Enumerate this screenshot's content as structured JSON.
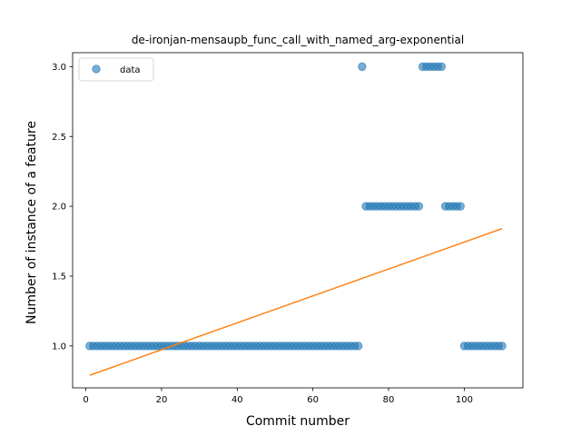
{
  "chart_data": {
    "type": "scatter",
    "title": "de-ironjan-mensaupb_func_call_with_named_arg-exponential",
    "xlabel": "Commit number",
    "ylabel": "Number of instance of a feature",
    "xlim": [
      -3.5,
      115.5
    ],
    "ylim": [
      0.7,
      3.1
    ],
    "x_ticks": [
      0,
      20,
      40,
      60,
      80,
      100
    ],
    "y_ticks": [
      1.0,
      1.5,
      2.0,
      2.5,
      3.0
    ],
    "x_tick_labels": [
      "0",
      "20",
      "40",
      "60",
      "80",
      "100"
    ],
    "y_tick_labels": [
      "1.0",
      "1.5",
      "2.0",
      "2.5",
      "3.0"
    ],
    "legend": {
      "placement": "upper-left",
      "entries": [
        "data"
      ]
    },
    "colors": {
      "data": "#1f77b4",
      "fit": "#ff7f0e"
    },
    "series": [
      {
        "name": "data",
        "kind": "scatter",
        "points": [
          [
            1,
            1
          ],
          [
            2,
            1
          ],
          [
            3,
            1
          ],
          [
            4,
            1
          ],
          [
            5,
            1
          ],
          [
            6,
            1
          ],
          [
            7,
            1
          ],
          [
            8,
            1
          ],
          [
            9,
            1
          ],
          [
            10,
            1
          ],
          [
            11,
            1
          ],
          [
            12,
            1
          ],
          [
            13,
            1
          ],
          [
            14,
            1
          ],
          [
            15,
            1
          ],
          [
            16,
            1
          ],
          [
            17,
            1
          ],
          [
            18,
            1
          ],
          [
            19,
            1
          ],
          [
            20,
            1
          ],
          [
            21,
            1
          ],
          [
            22,
            1
          ],
          [
            23,
            1
          ],
          [
            24,
            1
          ],
          [
            25,
            1
          ],
          [
            26,
            1
          ],
          [
            27,
            1
          ],
          [
            28,
            1
          ],
          [
            29,
            1
          ],
          [
            30,
            1
          ],
          [
            31,
            1
          ],
          [
            32,
            1
          ],
          [
            33,
            1
          ],
          [
            34,
            1
          ],
          [
            35,
            1
          ],
          [
            36,
            1
          ],
          [
            37,
            1
          ],
          [
            38,
            1
          ],
          [
            39,
            1
          ],
          [
            40,
            1
          ],
          [
            41,
            1
          ],
          [
            42,
            1
          ],
          [
            43,
            1
          ],
          [
            44,
            1
          ],
          [
            45,
            1
          ],
          [
            46,
            1
          ],
          [
            47,
            1
          ],
          [
            48,
            1
          ],
          [
            49,
            1
          ],
          [
            50,
            1
          ],
          [
            51,
            1
          ],
          [
            52,
            1
          ],
          [
            53,
            1
          ],
          [
            54,
            1
          ],
          [
            55,
            1
          ],
          [
            56,
            1
          ],
          [
            57,
            1
          ],
          [
            58,
            1
          ],
          [
            59,
            1
          ],
          [
            60,
            1
          ],
          [
            61,
            1
          ],
          [
            62,
            1
          ],
          [
            63,
            1
          ],
          [
            64,
            1
          ],
          [
            65,
            1
          ],
          [
            66,
            1
          ],
          [
            67,
            1
          ],
          [
            68,
            1
          ],
          [
            69,
            1
          ],
          [
            70,
            1
          ],
          [
            71,
            1
          ],
          [
            72,
            1
          ],
          [
            73,
            3
          ],
          [
            74,
            2
          ],
          [
            75,
            2
          ],
          [
            76,
            2
          ],
          [
            77,
            2
          ],
          [
            78,
            2
          ],
          [
            79,
            2
          ],
          [
            80,
            2
          ],
          [
            81,
            2
          ],
          [
            82,
            2
          ],
          [
            83,
            2
          ],
          [
            84,
            2
          ],
          [
            85,
            2
          ],
          [
            86,
            2
          ],
          [
            87,
            2
          ],
          [
            88,
            2
          ],
          [
            89,
            3
          ],
          [
            90,
            3
          ],
          [
            91,
            3
          ],
          [
            92,
            3
          ],
          [
            93,
            3
          ],
          [
            94,
            3
          ],
          [
            95,
            2
          ],
          [
            96,
            2
          ],
          [
            97,
            2
          ],
          [
            98,
            2
          ],
          [
            99,
            2
          ],
          [
            100,
            1
          ],
          [
            101,
            1
          ],
          [
            102,
            1
          ],
          [
            103,
            1
          ],
          [
            104,
            1
          ],
          [
            105,
            1
          ],
          [
            106,
            1
          ],
          [
            107,
            1
          ],
          [
            108,
            1
          ],
          [
            109,
            1
          ],
          [
            110,
            1
          ]
        ]
      },
      {
        "name": "",
        "kind": "line",
        "points": [
          [
            1,
            0.79
          ],
          [
            110,
            1.84
          ]
        ]
      }
    ]
  }
}
